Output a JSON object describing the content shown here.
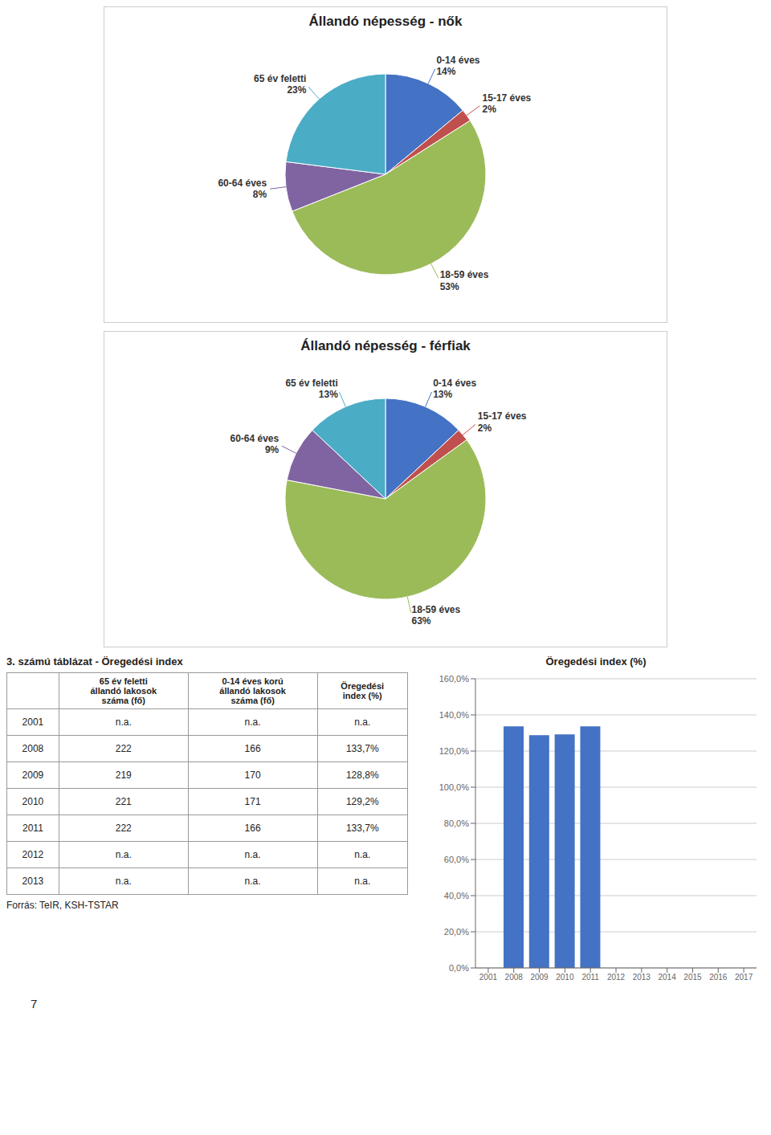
{
  "chart_data": [
    {
      "type": "pie",
      "title": "Állandó népesség - nők",
      "categories": [
        "0-14 éves",
        "15-17 éves",
        "18-59 éves",
        "60-64 éves",
        "65 év feletti"
      ],
      "values": [
        14,
        2,
        53,
        8,
        23
      ],
      "value_labels": [
        "14%",
        "2%",
        "53%",
        "8%",
        "23%"
      ],
      "colors": [
        "#4472C4",
        "#C0504D",
        "#9BBB59",
        "#8064A2",
        "#4BACC6"
      ],
      "data_labels": true
    },
    {
      "type": "pie",
      "title": "Állandó népesség - férfiak",
      "categories": [
        "0-14 éves",
        "15-17 éves",
        "18-59 éves",
        "60-64 éves",
        "65 év feletti"
      ],
      "values": [
        13,
        2,
        63,
        9,
        13
      ],
      "value_labels": [
        "13%",
        "2%",
        "63%",
        "9%",
        "13%"
      ],
      "colors": [
        "#4472C4",
        "#C0504D",
        "#9BBB59",
        "#8064A2",
        "#4BACC6"
      ],
      "data_labels": true
    },
    {
      "type": "table",
      "title": "3. számú táblázat - Öregedési index",
      "columns": [
        "65 év feletti\nállandó lakosok\nszáma (fő)",
        "0-14 éves korú\nállandó lakosok\nszáma (fő)",
        "Öregedési\nindex (%)"
      ],
      "rows": [
        [
          "2001",
          "n.a.",
          "n.a.",
          "n.a."
        ],
        [
          "2008",
          "222",
          "166",
          "133,7%"
        ],
        [
          "2009",
          "219",
          "170",
          "128,8%"
        ],
        [
          "2010",
          "221",
          "171",
          "129,2%"
        ],
        [
          "2011",
          "222",
          "166",
          "133,7%"
        ],
        [
          "2012",
          "n.a.",
          "n.a.",
          "n.a."
        ],
        [
          "2013",
          "n.a.",
          "n.a.",
          "n.a."
        ]
      ],
      "annotations": [
        "Forrás: TeIR, KSH-TSTAR",
        "7"
      ]
    },
    {
      "type": "bar",
      "title": "Öregedési index (%)",
      "categories": [
        "2001",
        "2008",
        "2009",
        "2010",
        "2011",
        "2012",
        "2013",
        "2014",
        "2015",
        "2016",
        "2017"
      ],
      "values": [
        0,
        133.7,
        128.8,
        129.2,
        133.7,
        0,
        0,
        0,
        0,
        0,
        0
      ],
      "color": "#4472C4",
      "ylim": [
        0,
        160
      ],
      "yticks": [
        {
          "value": 0,
          "label": "0,0%"
        },
        {
          "value": 20,
          "label": "20,0%"
        },
        {
          "value": 40,
          "label": "40,0%"
        },
        {
          "value": 60,
          "label": "60,0%"
        },
        {
          "value": 80,
          "label": "80,0%"
        },
        {
          "value": 100,
          "label": "100,0%"
        },
        {
          "value": 120,
          "label": "120,0%"
        },
        {
          "value": 140,
          "label": "140,0%"
        },
        {
          "value": 160,
          "label": "160,0%"
        }
      ],
      "grid": true
    }
  ]
}
